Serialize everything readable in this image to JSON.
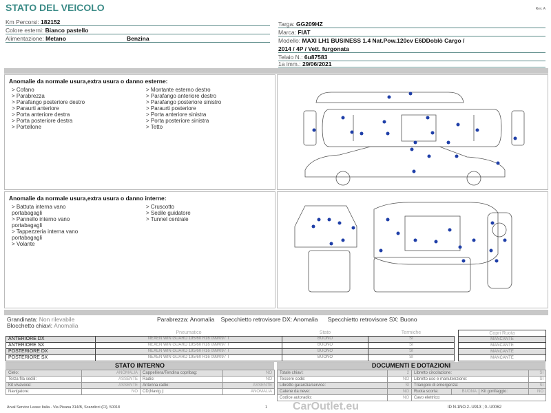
{
  "title": "STATO DEL VEICOLO",
  "rev": "Rev. A",
  "vehicle": {
    "km_label": "Km Percorsi:",
    "km": "182152",
    "color_label": "Colore esterni:",
    "color": "Bianco pastello",
    "fuel_label": "Alimentazione:",
    "fuel1": "Metano",
    "fuel2": "Benzina",
    "plate_label": "Targa:",
    "plate": "GG209HZ",
    "brand_label": "Marca:",
    "brand": "FIAT",
    "model_label": "Modello:",
    "model1": "MAXI LH1 BUSINESS 1.4 Nat.Pow.120cv E6DDoblò Cargo /",
    "model2": "2014 / 4P / Vett. furgonata",
    "chassis_label": "Telaio N.:",
    "chassis": "6u87583",
    "reg_label": "1a imm.:",
    "reg": "29/06/2021"
  },
  "exterior": {
    "heading": "Anomalie da normale usura,extra usura o danno esterne:",
    "col1": [
      "> Cofano",
      "> Parabrezza",
      "> Parafango posteriore destro",
      "> Paraurti anteriore",
      "> Porta anteriore destra",
      "> Porta posteriore destra",
      "> Portellone"
    ],
    "col2": [
      "> Montante esterno destro",
      "> Parafango anteriore destro",
      "> Parafango posteriore sinistro",
      "> Paraurti posteriore",
      "> Porta anteriore sinistra",
      "> Porta posteriore sinistra",
      "> Tetto"
    ]
  },
  "interior": {
    "heading": "Anomalie da normale usura,extra usura o danno interne:",
    "col1": [
      "> Battuta interna vano",
      "portabagagli",
      "> Pannello interno vano",
      "portabagagli",
      "> Tappezzeria interna vano",
      "portabagagli",
      "> Volante"
    ],
    "col2": [
      "> Cruscotto",
      "> Sedile guidatore",
      "> Tunnel centrale"
    ]
  },
  "summary": {
    "hail_label": "Grandinata:",
    "hail": "Non rilevabile",
    "keys_label": "Blocchetto chiavi:",
    "keys": "Anomalia",
    "windshield_label": "Parabrezza:",
    "windshield": "Anomalia",
    "mirror_dx_label": "Specchietto retrovisore DX:",
    "mirror_dx": "Anomalia",
    "mirror_sx_label": "Specchietto retrovisore SX:",
    "mirror_sx": "Buono"
  },
  "tyres": {
    "headers": [
      "Pneumatico",
      "Stato",
      "Termiche",
      "Copri Ruota"
    ],
    "rows": [
      {
        "pos": "ANTERIORE DX",
        "tyre": "NEXEN WIN GUARD 195/60 R16 099/097 T",
        "state": "BUONO",
        "winter": "SI",
        "cover": "MANCANTE"
      },
      {
        "pos": "ANTERIORE SX",
        "tyre": "NEXEN WIN GUARD 195/60 R16 099/097 T",
        "state": "BUONO",
        "winter": "SI",
        "cover": "MANCANTE"
      },
      {
        "pos": "POSTERIORE DX",
        "tyre": "NEXEN WIN GUARD 195/60 R16 099/097 T",
        "state": "BUONO",
        "winter": "SI",
        "cover": "MANCANTE"
      },
      {
        "pos": "POSTERIORE SX",
        "tyre": "NEXEN WIN GUARD 195/60 R16 099/097 T",
        "state": "BUONO",
        "winter": "SI",
        "cover": "MANCANTE"
      }
    ]
  },
  "interior_state": {
    "title": "STATO INTERNO",
    "rows": [
      [
        "Cielo:",
        "ANOMALIA",
        "Cappelliera/Tendina copribag:",
        "NO"
      ],
      [
        "Terza fila sedili:",
        "ASSENTE",
        "Radio:",
        "NO"
      ],
      [
        "Kit vivavoce:",
        "ASSENTE",
        "Antenna radio:",
        "ASSENTE"
      ],
      [
        "Navigatore:",
        "NO",
        "CD(Navig.):",
        "ANOMALIA"
      ]
    ]
  },
  "documents": {
    "title": "DOCUMENTI E DOTAZIONI",
    "rows": [
      [
        "Totale chiavi:",
        "2",
        "Libretto circolazione:",
        "SI"
      ],
      [
        "Tessere code:",
        "NO",
        "Libretto uso e manutenzione:",
        "SI"
      ],
      [
        "Libretto garanzia/service:",
        "SI",
        "Triangolo di emergenza:",
        "SI"
      ]
    ],
    "row4": [
      "Catene da neve:",
      "NO",
      "Ruota scorta:",
      "BUONA",
      "Kit gonfiaggio:",
      "NO"
    ],
    "row5": [
      "Codice autoradio:",
      "NO",
      "Cavo elettrico:",
      ""
    ]
  },
  "footer": {
    "company": "Arval Service Lease Italia - Via Pisana 314/B, Scandicci (FI), 50018",
    "page": "1",
    "code": "ID N.1NO.2..U913 ; 0..U0062"
  },
  "watermark": "CarOutlet.eu",
  "colors": {
    "accent": "#3a8a86",
    "dot": "#1f3fa8",
    "band": "#c8c8c8"
  }
}
